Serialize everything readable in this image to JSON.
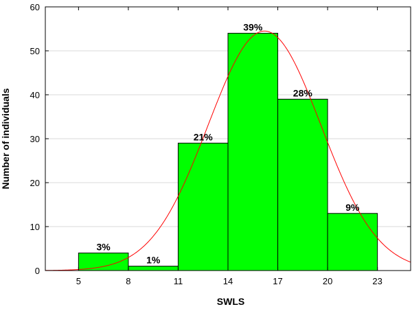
{
  "chart_data": {
    "type": "bar",
    "xlabel": "SWLS",
    "ylabel": "Number of individuals",
    "xlim": [
      3,
      25
    ],
    "ylim": [
      0,
      60
    ],
    "x_ticks": [
      5,
      8,
      11,
      14,
      17,
      20,
      23
    ],
    "y_ticks": [
      0,
      10,
      20,
      30,
      40,
      50,
      60
    ],
    "grid": "horizontal",
    "bins": [
      {
        "x0": 5,
        "x1": 8,
        "value": 4,
        "label": "3%"
      },
      {
        "x0": 8,
        "x1": 11,
        "value": 1,
        "label": "1%"
      },
      {
        "x0": 11,
        "x1": 14,
        "value": 29,
        "label": "21%"
      },
      {
        "x0": 14,
        "x1": 17,
        "value": 54,
        "label": "39%"
      },
      {
        "x0": 17,
        "x1": 20,
        "value": 39,
        "label": "28%"
      },
      {
        "x0": 20,
        "x1": 23,
        "value": 13,
        "label": "9%"
      }
    ],
    "fit_curve": {
      "type": "normal",
      "mean": 16.2,
      "sd": 3.4,
      "peak": 54.5
    },
    "colors": {
      "bar_fill": "#00ff00",
      "bar_stroke": "#000000",
      "curve": "#ff0000",
      "grid": "#d9d9d9"
    }
  }
}
